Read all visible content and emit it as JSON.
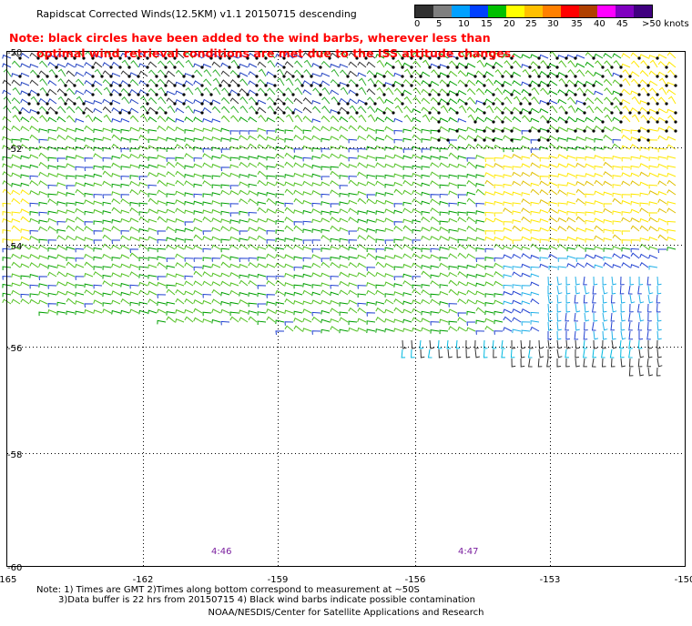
{
  "title": "Rapidscat Corrected Winds(12.5KM) v1.1 20150715 descending",
  "note_line1": "Note: black circles have been added to the wind barbs, wherever less than",
  "note_line2": "optimal wind retrieval conditions are met due to the ISS attitude changes.",
  "legend": {
    "colors": [
      "#303030",
      "#7f7f7f",
      "#00a0ff",
      "#0040ff",
      "#00c000",
      "#ffff00",
      "#ffc000",
      "#ff8000",
      "#ff0000",
      "#b04000",
      "#ff00ff",
      "#8000c0",
      "#400080"
    ],
    "labels": [
      "0",
      "5",
      "10",
      "15",
      "20",
      "25",
      "30",
      "35",
      "40",
      "45",
      ">50 knots"
    ]
  },
  "map": {
    "lat_ticks": [
      "-50",
      "-52",
      "-54",
      "-56",
      "-58",
      "-60"
    ],
    "lon_ticks": [
      "-165",
      "-162",
      "-159",
      "-156",
      "-153",
      "-150"
    ],
    "time_labels": [
      "4:46",
      "4:47"
    ]
  },
  "footnote_line1": "Note: 1) Times are GMT 2)Times along bottom correspond to measurement at ~50S",
  "footnote_line2": "3)Data buffer is 22 hrs from 20150715 4) Black wind barbs indicate possible contamination",
  "credit": "NOAA/NESDIS/Center for Satellite Applications and Research"
}
